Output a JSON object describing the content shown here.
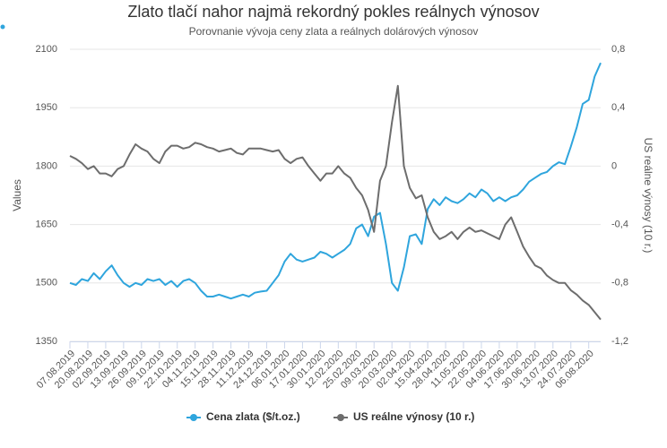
{
  "chart_data": {
    "type": "line",
    "title": "Zlato tlačí nahor najmä rekordný pokles reálnych výnosov",
    "subtitle": "Porovnanie vývoja ceny zlata a reálnych dolárových výnosov",
    "y_label": "Values",
    "y2_label": "US reálne výnosy (10 r.)",
    "categories": [
      "07.08.2019",
      null,
      null,
      "20.08.2019",
      null,
      null,
      "02.09.2019",
      null,
      null,
      "13.09.2019",
      null,
      null,
      "26.09.2019",
      null,
      null,
      "09.10.2019",
      null,
      null,
      "22.10.2019",
      null,
      null,
      "04.11.2019",
      null,
      null,
      "15.11.2019",
      null,
      null,
      "28.11.2019",
      null,
      null,
      "11.12.2019",
      null,
      null,
      "24.12.2019",
      null,
      null,
      "06.01.2020",
      null,
      null,
      "17.01.2020",
      null,
      null,
      "30.01.2020",
      null,
      null,
      "12.02.2020",
      null,
      null,
      "25.02.2020",
      null,
      null,
      "09.03.2020",
      null,
      null,
      "20.03.2020",
      null,
      null,
      "02.04.2020",
      null,
      null,
      "15.04.2020",
      null,
      null,
      "28.04.2020",
      null,
      null,
      "11.05.2020",
      null,
      null,
      "22.05.2020",
      null,
      null,
      "04.06.2020",
      null,
      null,
      "17.06.2020",
      null,
      null,
      "30.06.2020",
      null,
      null,
      "13.07.2020",
      null,
      null,
      "24.07.2020",
      null,
      null,
      "06.08.2020",
      null,
      null
    ],
    "series": [
      {
        "name": "Cena zlata ($/t.oz.)",
        "color": "#2fa5dd",
        "axis": "y",
        "values": [
          1500,
          1495,
          1510,
          1505,
          1525,
          1510,
          1530,
          1545,
          1520,
          1500,
          1490,
          1500,
          1495,
          1510,
          1505,
          1510,
          1495,
          1505,
          1490,
          1505,
          1510,
          1500,
          1480,
          1465,
          1465,
          1470,
          1465,
          1460,
          1465,
          1470,
          1465,
          1475,
          1478,
          1480,
          1500,
          1520,
          1555,
          1575,
          1560,
          1555,
          1560,
          1565,
          1580,
          1575,
          1565,
          1575,
          1585,
          1600,
          1640,
          1650,
          1620,
          1670,
          1680,
          1600,
          1500,
          1480,
          1540,
          1620,
          1625,
          1600,
          1690,
          1715,
          1700,
          1720,
          1710,
          1705,
          1715,
          1730,
          1720,
          1740,
          1730,
          1710,
          1720,
          1710,
          1720,
          1725,
          1740,
          1760,
          1770,
          1780,
          1785,
          1800,
          1810,
          1805,
          1850,
          1900,
          1960,
          1970,
          2030,
          2065
        ]
      },
      {
        "name": "US reálne výnosy (10 r.)",
        "color": "#6d6d6d",
        "axis": "y2",
        "values": [
          0.07,
          0.05,
          0.02,
          -0.02,
          0.0,
          -0.05,
          -0.05,
          -0.07,
          -0.02,
          0.0,
          0.08,
          0.15,
          0.12,
          0.1,
          0.05,
          0.02,
          0.1,
          0.14,
          0.14,
          0.12,
          0.13,
          0.16,
          0.15,
          0.13,
          0.12,
          0.1,
          0.11,
          0.12,
          0.09,
          0.08,
          0.12,
          0.12,
          0.12,
          0.11,
          0.1,
          0.11,
          0.05,
          0.02,
          0.05,
          0.06,
          0.0,
          -0.05,
          -0.1,
          -0.05,
          -0.05,
          0.0,
          -0.05,
          -0.08,
          -0.15,
          -0.2,
          -0.3,
          -0.45,
          -0.1,
          0.0,
          0.3,
          0.55,
          0.0,
          -0.15,
          -0.22,
          -0.2,
          -0.35,
          -0.45,
          -0.5,
          -0.48,
          -0.45,
          -0.5,
          -0.45,
          -0.42,
          -0.45,
          -0.44,
          -0.46,
          -0.48,
          -0.5,
          -0.4,
          -0.35,
          -0.45,
          -0.55,
          -0.62,
          -0.68,
          -0.7,
          -0.75,
          -0.78,
          -0.8,
          -0.8,
          -0.85,
          -0.88,
          -0.92,
          -0.95,
          -1.0,
          -1.05
        ]
      }
    ],
    "ylim": [
      1350,
      2100
    ],
    "yticks": [
      1350,
      1500,
      1650,
      1800,
      1950,
      2100
    ],
    "y2lim": [
      -1.2,
      0.8
    ],
    "y2ticks": [
      {
        "value": -1.2,
        "label": "-1,2"
      },
      {
        "value": -0.8,
        "label": "-0,8"
      },
      {
        "value": -0.4,
        "label": "-0,4"
      },
      0,
      {
        "value": 0.4,
        "label": "0,4"
      },
      {
        "value": 0.8,
        "label": "0,8"
      }
    ],
    "grid": true,
    "legend": "bottom"
  }
}
